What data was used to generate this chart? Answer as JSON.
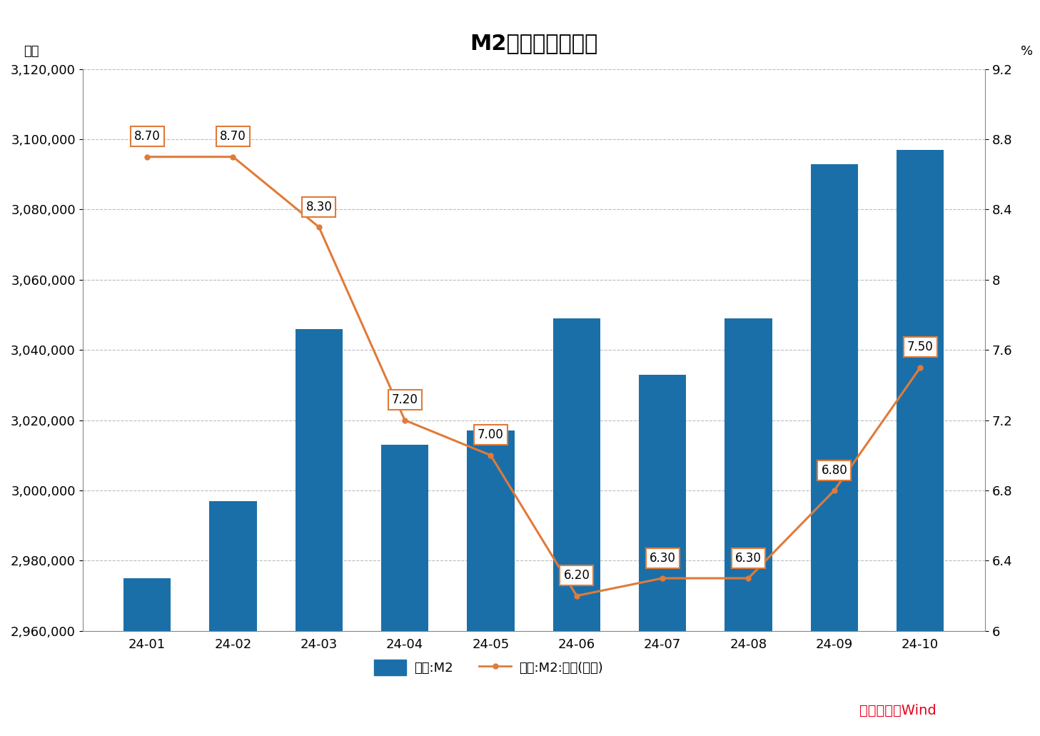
{
  "title": "M2数据及变化情况",
  "categories": [
    "24-01",
    "24-02",
    "24-03",
    "24-04",
    "24-05",
    "24-06",
    "24-07",
    "24-08",
    "24-09",
    "24-10"
  ],
  "m2_values": [
    2975000,
    2997000,
    3046000,
    3013000,
    3017000,
    3049000,
    3033000,
    3049000,
    3093000,
    3097000
  ],
  "yoy_values": [
    8.7,
    8.7,
    8.3,
    7.2,
    7.0,
    6.2,
    6.3,
    6.3,
    6.8,
    7.5
  ],
  "bar_color": "#1B6FA8",
  "line_color": "#E07B39",
  "yleft_min": 2960000,
  "yleft_max": 3120000,
  "yright_min": 6.0,
  "yright_max": 9.2,
  "ylabel_left": "亿元",
  "ylabel_right": "%",
  "legend_bar": "中国:M2",
  "legend_line": "中国:M2:同比(右轴)",
  "source_text": "数据来源：Wind",
  "source_color": "#E5001A",
  "background_color": "#FFFFFF",
  "grid_color": "#BBBBBB",
  "yticks_left": [
    2960000,
    2980000,
    3000000,
    3020000,
    3040000,
    3060000,
    3080000,
    3100000,
    3120000
  ],
  "yticks_right": [
    6.0,
    6.4,
    6.8,
    7.2,
    7.6,
    8.0,
    8.4,
    8.8,
    9.2
  ],
  "title_fontsize": 22,
  "tick_fontsize": 13,
  "label_fontsize": 13,
  "annot_fontsize": 12
}
